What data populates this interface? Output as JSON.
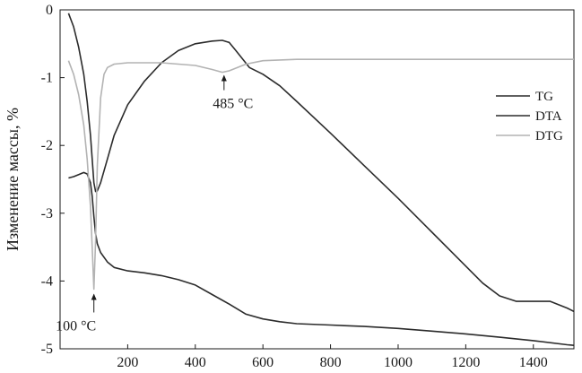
{
  "chart_data": {
    "type": "line",
    "title": "",
    "xlabel": "",
    "ylabel": "Изменение массы, %",
    "xlim": [
      0,
      1520
    ],
    "ylim": [
      -5,
      0
    ],
    "grid": false,
    "legend_position": "right",
    "x_ticks": [
      "200",
      "400",
      "600",
      "800",
      "1000",
      "1200",
      "1400"
    ],
    "x_tick_values": [
      200,
      400,
      600,
      800,
      1000,
      1200,
      1400
    ],
    "y_ticks": [
      "0",
      "-1",
      "-2",
      "-3",
      "-4",
      "-5"
    ],
    "y_tick_values": [
      0,
      -1,
      -2,
      -3,
      -4,
      -5
    ],
    "series": [
      {
        "name": "TG",
        "color": "#2b2b2b",
        "x": [
          25,
          40,
          55,
          70,
          80,
          90,
          95,
          100,
          105,
          110,
          120,
          140,
          160,
          200,
          250,
          300,
          350,
          400,
          450,
          500,
          550,
          600,
          650,
          700,
          800,
          900,
          1000,
          1100,
          1200,
          1300,
          1400,
          1500,
          1520
        ],
        "y": [
          -2.48,
          -2.46,
          -2.43,
          -2.4,
          -2.42,
          -2.55,
          -2.75,
          -3.05,
          -3.3,
          -3.45,
          -3.58,
          -3.72,
          -3.8,
          -3.85,
          -3.88,
          -3.92,
          -3.98,
          -4.06,
          -4.2,
          -4.34,
          -4.49,
          -4.56,
          -4.6,
          -4.63,
          -4.65,
          -4.67,
          -4.7,
          -4.74,
          -4.78,
          -4.83,
          -4.88,
          -4.94,
          -4.95
        ]
      },
      {
        "name": "DTA",
        "color": "#2b2b2b",
        "x": [
          25,
          40,
          55,
          70,
          80,
          90,
          100,
          105,
          110,
          120,
          140,
          160,
          200,
          250,
          300,
          350,
          400,
          450,
          480,
          500,
          520,
          560,
          600,
          650,
          700,
          800,
          900,
          1000,
          1100,
          1200,
          1250,
          1300,
          1350,
          1400,
          1450,
          1500,
          1520
        ],
        "y": [
          -0.05,
          -0.25,
          -0.55,
          -0.95,
          -1.35,
          -1.85,
          -2.55,
          -2.68,
          -2.67,
          -2.55,
          -2.2,
          -1.85,
          -1.4,
          -1.05,
          -0.78,
          -0.6,
          -0.5,
          -0.46,
          -0.45,
          -0.48,
          -0.6,
          -0.85,
          -0.95,
          -1.12,
          -1.35,
          -1.82,
          -2.3,
          -2.78,
          -3.28,
          -3.78,
          -4.03,
          -4.22,
          -4.3,
          -4.3,
          -4.3,
          -4.4,
          -4.45
        ]
      },
      {
        "name": "DTG",
        "color": "#b3b3b3",
        "x": [
          25,
          40,
          55,
          70,
          80,
          90,
          95,
          100,
          105,
          110,
          120,
          130,
          140,
          160,
          200,
          300,
          350,
          400,
          450,
          480,
          500,
          550,
          600,
          700,
          800,
          900,
          1000,
          1100,
          1200,
          1300,
          1400,
          1520
        ],
        "y": [
          -0.75,
          -0.95,
          -1.25,
          -1.7,
          -2.2,
          -2.9,
          -3.5,
          -4.12,
          -3.4,
          -2.3,
          -1.3,
          -0.95,
          -0.85,
          -0.8,
          -0.78,
          -0.78,
          -0.8,
          -0.82,
          -0.88,
          -0.92,
          -0.9,
          -0.8,
          -0.75,
          -0.73,
          -0.73,
          -0.73,
          -0.73,
          -0.73,
          -0.73,
          -0.73,
          -0.73,
          -0.73
        ]
      }
    ],
    "annotations": [
      {
        "text": "100 °C",
        "x": 100,
        "y": -4.12
      },
      {
        "text": "485 °C",
        "x": 485,
        "y": -0.92
      }
    ]
  }
}
